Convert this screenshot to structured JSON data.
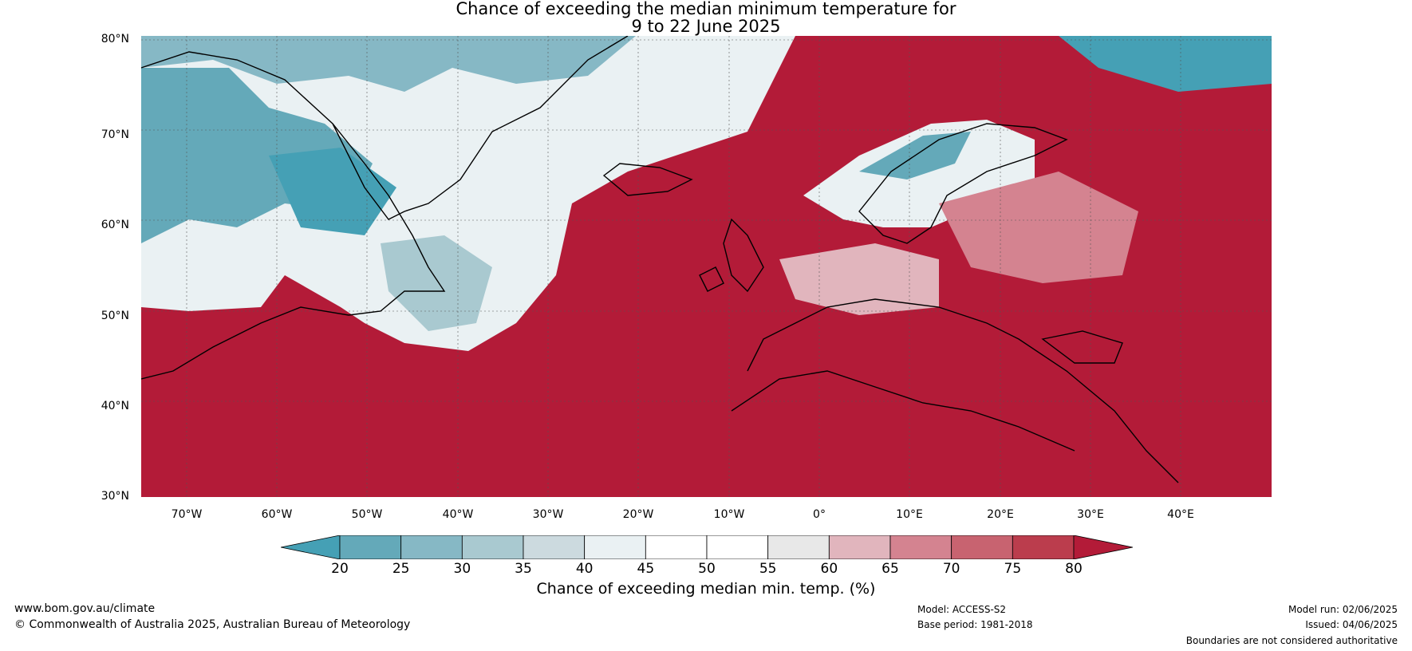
{
  "title": {
    "line1": "Chance of exceeding the median minimum temperature for",
    "line2": "9 to 22 June 2025"
  },
  "map": {
    "lat_labels": [
      "80°N",
      "70°N",
      "60°N",
      "50°N",
      "40°N",
      "30°N"
    ],
    "lon_labels": [
      "70°W",
      "60°W",
      "50°W",
      "40°W",
      "30°W",
      "20°W",
      "10°W",
      "0°",
      "10°E",
      "20°E",
      "30°E",
      "40°E"
    ],
    "lat_range": [
      30,
      80
    ],
    "lon_range": [
      -75,
      50
    ],
    "colors": {
      "dry_extreme": "#45a0b5",
      "high_extreme": "#b31b38"
    }
  },
  "colorbar": {
    "label": "Chance of exceeding median min. temp. (%)",
    "ticks": [
      "20",
      "25",
      "30",
      "35",
      "40",
      "45",
      "50",
      "55",
      "60",
      "65",
      "70",
      "75",
      "80"
    ],
    "colors": [
      "#45a0b5",
      "#64a9b9",
      "#86b8c5",
      "#a9c9d0",
      "#ccdadf",
      "#eaf1f3",
      "#ffffff",
      "#ffffff",
      "#e8e8e8",
      "#e1b5bd",
      "#d48390",
      "#c86370",
      "#bb3d4d",
      "#b31b38"
    ]
  },
  "footer": {
    "website": "www.bom.gov.au/climate",
    "copyright": "© Commonwealth of Australia 2025, Australian Bureau of Meteorology",
    "model": "Model: ACCESS-S2",
    "base_period": "Base period: 1981-2018",
    "model_run": "Model run: 02/06/2025",
    "issued": "Issued: 04/06/2025",
    "disclaimer": "Boundaries are not considered authoritative"
  }
}
